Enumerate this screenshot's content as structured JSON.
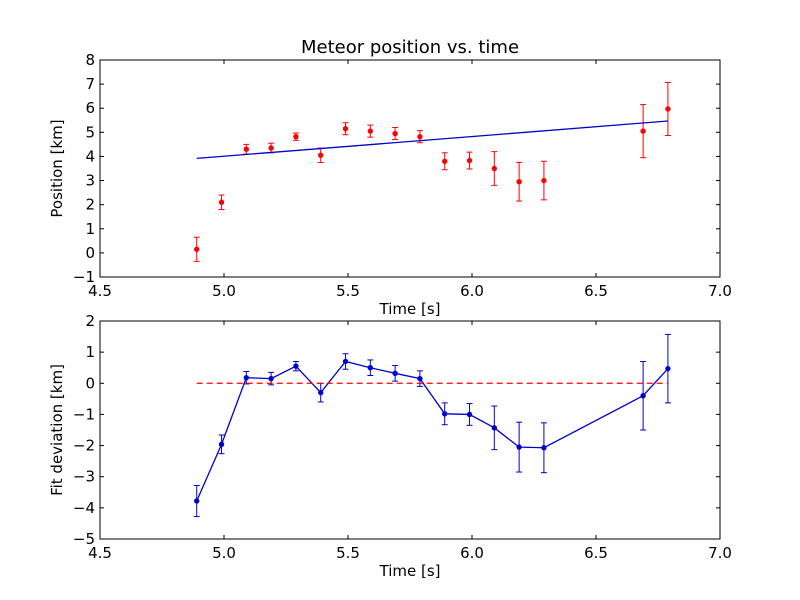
{
  "chart_data": [
    {
      "type": "scatter",
      "title": "Meteor position vs. time",
      "xlabel": "Time [s]",
      "ylabel": "Position [km]",
      "xlim": [
        4.5,
        7.0
      ],
      "ylim": [
        -1,
        8
      ],
      "xticks": [
        4.5,
        5.0,
        5.5,
        6.0,
        6.5,
        7.0
      ],
      "xtick_labels": [
        "4.5",
        "5.0",
        "5.5",
        "6.0",
        "6.5",
        "7.0"
      ],
      "yticks": [
        -1,
        0,
        1,
        2,
        3,
        4,
        5,
        6,
        7,
        8
      ],
      "ytick_labels": [
        "−1",
        "0",
        "1",
        "2",
        "3",
        "4",
        "5",
        "6",
        "7",
        "8"
      ],
      "grid": false,
      "series": [
        {
          "kind": "errorbar-points",
          "color": "#ff0000",
          "x": [
            4.89,
            4.99,
            5.09,
            5.19,
            5.29,
            5.39,
            5.49,
            5.59,
            5.69,
            5.79,
            5.89,
            5.99,
            6.09,
            6.19,
            6.29,
            6.69,
            6.79
          ],
          "y": [
            0.15,
            2.1,
            4.3,
            4.35,
            4.82,
            4.05,
            5.15,
            5.05,
            4.95,
            4.82,
            3.8,
            3.83,
            3.5,
            2.95,
            3.0,
            5.05,
            5.97
          ],
          "yerr": [
            0.5,
            0.3,
            0.2,
            0.2,
            0.15,
            0.3,
            0.25,
            0.25,
            0.25,
            0.25,
            0.35,
            0.35,
            0.7,
            0.8,
            0.8,
            1.1,
            1.1
          ]
        },
        {
          "kind": "line",
          "color": "#0000cc",
          "x": [
            4.89,
            6.79
          ],
          "y": [
            3.92,
            5.47
          ]
        }
      ]
    },
    {
      "type": "line",
      "title": "",
      "xlabel": "Time [s]",
      "ylabel": "Fit deviation [km]",
      "xlim": [
        4.5,
        7.0
      ],
      "ylim": [
        -5,
        2
      ],
      "xticks": [
        4.5,
        5.0,
        5.5,
        6.0,
        6.5,
        7.0
      ],
      "xtick_labels": [
        "4.5",
        "5.0",
        "5.5",
        "6.0",
        "6.5",
        "7.0"
      ],
      "yticks": [
        -5,
        -4,
        -3,
        -2,
        -1,
        0,
        1,
        2
      ],
      "ytick_labels": [
        "−5",
        "−4",
        "−3",
        "−2",
        "−1",
        "0",
        "1",
        "2"
      ],
      "grid": false,
      "series": [
        {
          "kind": "errorbar-line",
          "color": "#0000cc",
          "x": [
            4.89,
            4.99,
            5.09,
            5.19,
            5.29,
            5.39,
            5.49,
            5.59,
            5.69,
            5.79,
            5.89,
            5.99,
            6.09,
            6.19,
            6.29,
            6.69,
            6.79
          ],
          "y": [
            -3.78,
            -1.96,
            0.18,
            0.15,
            0.55,
            -0.3,
            0.7,
            0.5,
            0.32,
            0.15,
            -0.98,
            -1.0,
            -1.43,
            -2.05,
            -2.07,
            -0.4,
            0.47
          ],
          "yerr": [
            0.5,
            0.3,
            0.2,
            0.2,
            0.15,
            0.3,
            0.25,
            0.25,
            0.25,
            0.25,
            0.35,
            0.35,
            0.7,
            0.8,
            0.8,
            1.1,
            1.1
          ]
        },
        {
          "kind": "dashed-line",
          "color": "#ff0000",
          "x": [
            4.89,
            6.79
          ],
          "y": [
            0,
            0
          ]
        }
      ]
    }
  ]
}
